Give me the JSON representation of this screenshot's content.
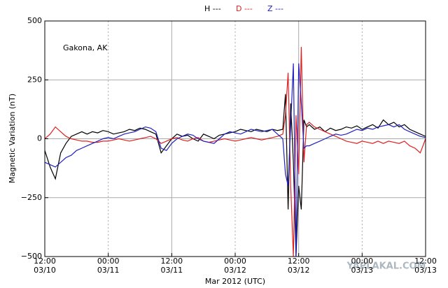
{
  "chart_data": {
    "type": "line",
    "annotation": "Gakona, AK",
    "watermark": "YAPLAKAL.COM",
    "xlabel": "Mar 2012 (UTC)",
    "ylabel": "Magnetic Variation (nT)",
    "xlim": [
      0,
      72
    ],
    "xticks": [
      {
        "value": 0,
        "label": [
          "12:00",
          "03/10"
        ]
      },
      {
        "value": 12,
        "label": [
          "00:00",
          "03/11"
        ]
      },
      {
        "value": 24,
        "label": [
          "12:00",
          "03/11"
        ]
      },
      {
        "value": 36,
        "label": [
          "00:00",
          "03/12"
        ]
      },
      {
        "value": 48,
        "label": [
          "12:00",
          "03/12"
        ]
      },
      {
        "value": 60,
        "label": [
          "00:00",
          "03/13"
        ]
      },
      {
        "value": 72,
        "label": [
          "12:00",
          "03/13"
        ]
      }
    ],
    "ylim": [
      -500,
      500
    ],
    "yticks": [
      {
        "value": -500,
        "label": "−500"
      },
      {
        "value": -250,
        "label": "−250"
      },
      0,
      250,
      500
    ],
    "grid": true,
    "legend": "top",
    "x": [
      0,
      1,
      2,
      3,
      4,
      5,
      6,
      7,
      8,
      9,
      10,
      11,
      12,
      13,
      14,
      15,
      16,
      17,
      18,
      19,
      20,
      21,
      22,
      23,
      24,
      25,
      26,
      27,
      28,
      29,
      30,
      31,
      32,
      33,
      34,
      35,
      36,
      37,
      38,
      39,
      40,
      41,
      42,
      43,
      44,
      45,
      45.5,
      46,
      46.5,
      47,
      47.5,
      48,
      48.5,
      49,
      49.5,
      50,
      51,
      52,
      53,
      54,
      55,
      56,
      57,
      58,
      59,
      60,
      61,
      62,
      63,
      64,
      65,
      66,
      67,
      68,
      69,
      70,
      71,
      72
    ],
    "series": [
      {
        "name": "H ---",
        "color": "#000000",
        "values": [
          -50,
          -120,
          -170,
          -60,
          -20,
          10,
          20,
          30,
          20,
          30,
          25,
          35,
          30,
          20,
          25,
          30,
          40,
          35,
          45,
          40,
          30,
          20,
          -60,
          -30,
          0,
          20,
          10,
          15,
          0,
          -10,
          20,
          10,
          0,
          15,
          20,
          25,
          30,
          40,
          35,
          30,
          40,
          35,
          30,
          40,
          35,
          40,
          190,
          -300,
          150,
          -100,
          -500,
          -200,
          -300,
          80,
          50,
          60,
          40,
          50,
          30,
          45,
          35,
          40,
          50,
          45,
          55,
          40,
          50,
          60,
          45,
          80,
          60,
          70,
          50,
          60,
          40,
          30,
          20,
          10
        ]
      },
      {
        "name": "D ---",
        "color": "#e02020",
        "values": [
          0,
          20,
          50,
          30,
          10,
          0,
          -5,
          -10,
          -10,
          -15,
          -15,
          -10,
          -10,
          -5,
          0,
          -5,
          -10,
          -5,
          0,
          5,
          10,
          0,
          -20,
          -10,
          0,
          5,
          -5,
          -10,
          0,
          5,
          -10,
          -15,
          -10,
          -5,
          0,
          -5,
          -10,
          -5,
          0,
          5,
          0,
          -5,
          0,
          5,
          10,
          20,
          100,
          280,
          -200,
          -500,
          100,
          -150,
          390,
          -100,
          60,
          70,
          50,
          40,
          30,
          20,
          10,
          0,
          -10,
          -15,
          -20,
          -10,
          -15,
          -20,
          -10,
          -20,
          -10,
          -15,
          -20,
          -10,
          -30,
          -40,
          -60,
          0
        ]
      },
      {
        "name": "Z ---",
        "color": "#2020c0",
        "values": [
          -100,
          -110,
          -120,
          -100,
          -80,
          -70,
          -50,
          -40,
          -30,
          -20,
          -10,
          0,
          5,
          0,
          10,
          20,
          25,
          30,
          40,
          50,
          45,
          30,
          -40,
          -50,
          -20,
          0,
          10,
          20,
          15,
          0,
          -10,
          -15,
          -20,
          0,
          20,
          30,
          25,
          20,
          30,
          40,
          35,
          30,
          35,
          40,
          20,
          0,
          -150,
          -200,
          60,
          320,
          -500,
          320,
          150,
          -40,
          -30,
          -30,
          -20,
          -10,
          0,
          10,
          20,
          15,
          20,
          30,
          40,
          35,
          45,
          40,
          50,
          55,
          60,
          50,
          60,
          40,
          30,
          20,
          10,
          5
        ]
      }
    ]
  }
}
